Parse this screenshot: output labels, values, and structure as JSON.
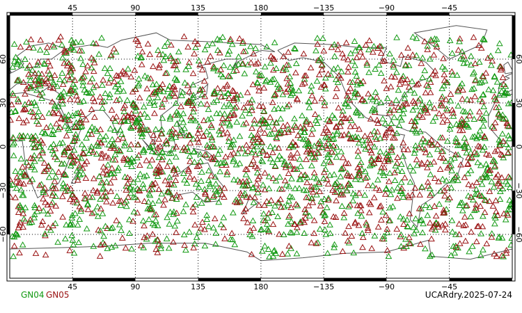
{
  "map": {
    "lon_ticks_top": [
      "45",
      "90",
      "135",
      "180",
      "−135",
      "−90",
      "−45"
    ],
    "lon_ticks_bottom": [
      "45",
      "90",
      "135",
      "180",
      "−135",
      "−90",
      "−45"
    ],
    "lat_ticks_left": [
      "60",
      "30",
      "0",
      "−30",
      "−60"
    ],
    "lat_ticks_right": [
      "60",
      "30",
      "0",
      "−30",
      "−60"
    ],
    "projection": "cylindrical equidistant, 0–360 longitude",
    "grid": true,
    "coastline_color": "#555555",
    "marker": "open-triangle"
  },
  "legend": [
    {
      "label": "GN04",
      "color": "#119911"
    },
    {
      "label": "GN05",
      "color": "#991111"
    }
  ],
  "stamp": "UCARdry.2025-07-24"
}
